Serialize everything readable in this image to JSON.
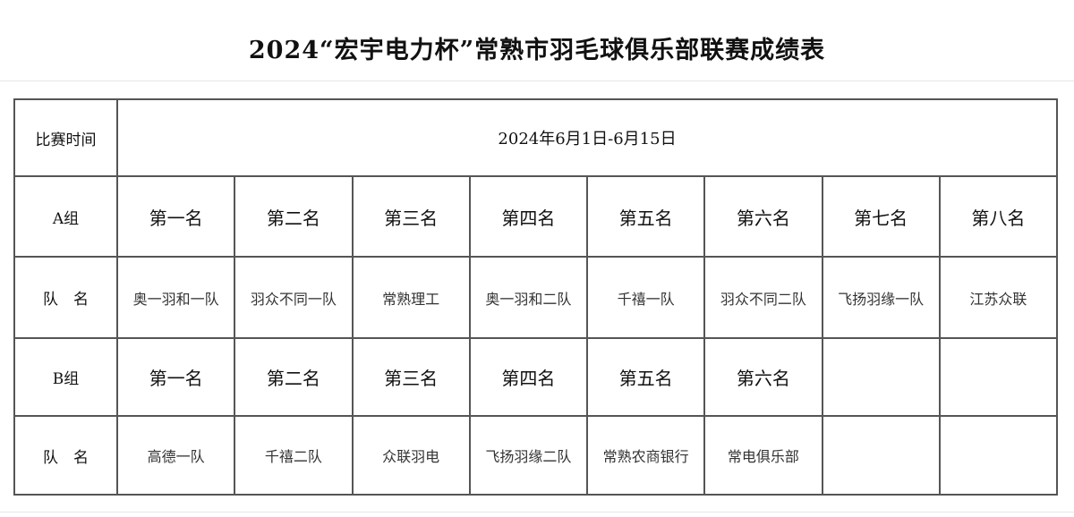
{
  "title": "2024“宏宇电力杯”常熟市羽毛球俱乐部联赛成绩表",
  "match_time": {
    "label": "比赛时间",
    "value": "2024年6月1日-6月15日"
  },
  "group_a": {
    "label": "A组",
    "ranks": [
      "第一名",
      "第二名",
      "第三名",
      "第四名",
      "第五名",
      "第六名",
      "第七名",
      "第八名"
    ],
    "team_label": "队　名",
    "teams": [
      "奥一羽和一队",
      "羽众不同一队",
      "常熟理工",
      "奥一羽和二队",
      "千禧一队",
      "羽众不同二队",
      "飞扬羽缘一队",
      "江苏众联"
    ]
  },
  "group_b": {
    "label": "B组",
    "ranks": [
      "第一名",
      "第二名",
      "第三名",
      "第四名",
      "第五名",
      "第六名",
      "",
      ""
    ],
    "team_label": "队　名",
    "teams": [
      "高德一队",
      "千禧二队",
      "众联羽电",
      "飞扬羽缘二队",
      "常熟农商银行",
      "常电俱乐部",
      "",
      ""
    ]
  }
}
